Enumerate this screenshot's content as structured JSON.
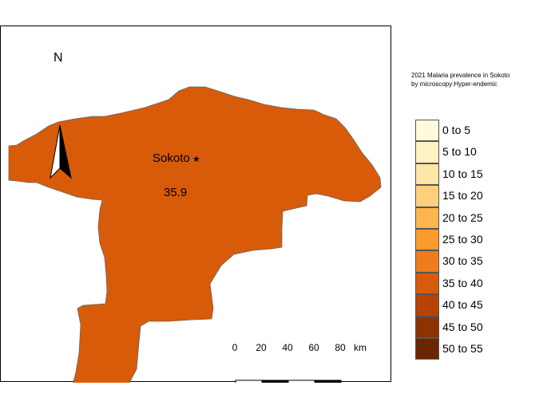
{
  "map": {
    "region_name": "Sokoto",
    "region_value": "35.9",
    "region_fill": "#d85b0a",
    "north_label": "N"
  },
  "scale_bar": {
    "ticks": [
      "0",
      "20",
      "40",
      "60",
      "80"
    ],
    "unit": "km"
  },
  "legend": {
    "title_line1": "2021 Malaria prevalence in Sokoto",
    "title_line2": "by microscopy:Hyper-endemic",
    "classes": [
      {
        "label": "0 to 5",
        "color": "#fff9dd"
      },
      {
        "label": "5 to 10",
        "color": "#fff2c4"
      },
      {
        "label": "10 to 15",
        "color": "#fee6a6"
      },
      {
        "label": "15 to 20",
        "color": "#fed07e"
      },
      {
        "label": "20 to 25",
        "color": "#feb54e"
      },
      {
        "label": "25 to 30",
        "color": "#fc9a2d"
      },
      {
        "label": "30 to 35",
        "color": "#f07b1c"
      },
      {
        "label": "35 to 40",
        "color": "#d85b0a"
      },
      {
        "label": "40 to 45",
        "color": "#b74204"
      },
      {
        "label": "45 to 50",
        "color": "#8f3203"
      },
      {
        "label": "50 to 55",
        "color": "#6b2503"
      }
    ]
  }
}
